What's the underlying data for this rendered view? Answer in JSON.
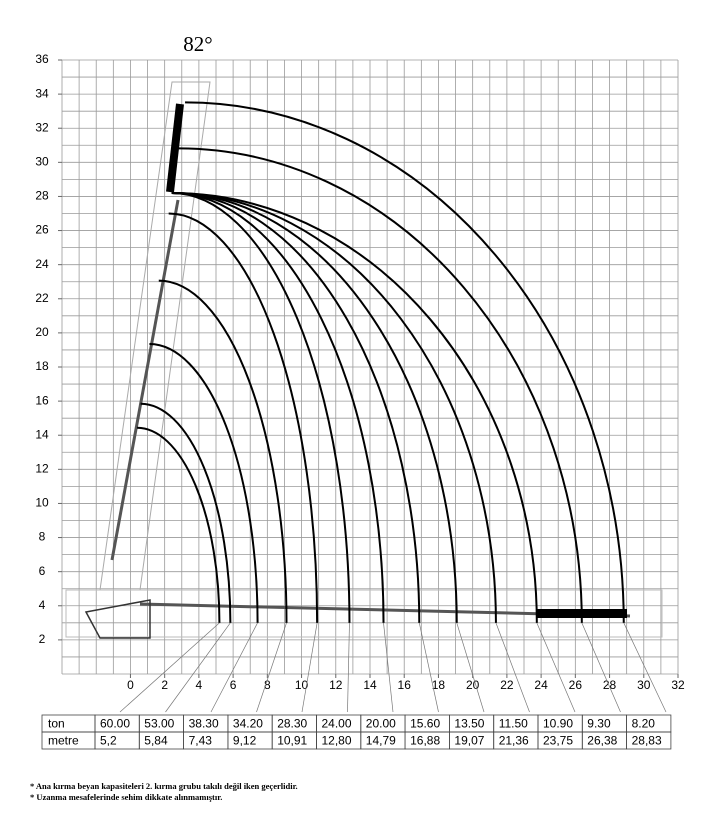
{
  "chart_data": {
    "type": "load-chart",
    "title": "82°",
    "xlim": [
      -4,
      32
    ],
    "ylim": [
      0,
      36
    ],
    "xticks": [
      0,
      2,
      4,
      6,
      8,
      10,
      12,
      14,
      16,
      18,
      20,
      22,
      24,
      26,
      28,
      30,
      32
    ],
    "yticks": [
      2,
      4,
      6,
      8,
      10,
      12,
      14,
      16,
      18,
      20,
      22,
      24,
      26,
      28,
      30,
      32,
      34,
      36
    ],
    "grid": true,
    "color": "#000000",
    "rows": [
      {
        "name": "ton",
        "values": [
          60,
          53,
          38.3,
          34.2,
          28.3,
          24,
          20,
          15.6,
          13.5,
          11.5,
          10.9,
          9.3,
          8.2
        ],
        "value_labels": [
          "60.00",
          "53.00",
          "38.30",
          "34.20",
          "28.30",
          "24.00",
          "20.00",
          "15.60",
          "13.50",
          "11.50",
          "10.90",
          "9.30",
          "8.20"
        ]
      },
      {
        "name": "metre",
        "values": [
          5.2,
          5.84,
          7.43,
          9.12,
          10.91,
          12.8,
          14.79,
          16.88,
          19.07,
          21.36,
          23.75,
          26.38,
          28.83
        ],
        "value_labels": [
          "5,2",
          "5,84",
          "7,43",
          "9,12",
          "10,91",
          "12,80",
          "14,79",
          "16,88",
          "19,07",
          "21,36",
          "23,75",
          "26,38",
          "28,83"
        ]
      }
    ],
    "notes": [
      "* Ana kırma beyan kapasiteleri 2. kırma grubu takılı değil iken geçerlidir.",
      "* Uzanma mesafelerinde sehim dikkate alınmamıştır."
    ]
  }
}
